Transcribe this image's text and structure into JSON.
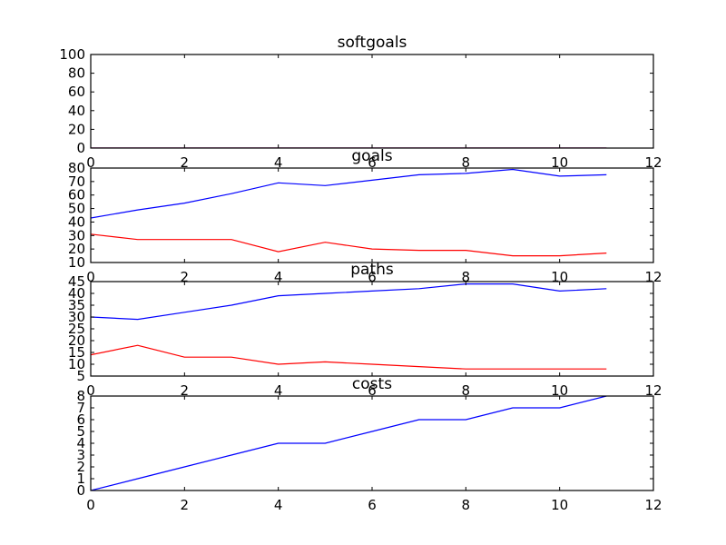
{
  "chart_data": [
    {
      "type": "line",
      "title": "softgoals",
      "xlim": [
        0,
        12
      ],
      "ylim": [
        0,
        100
      ],
      "xticks": [
        "0",
        "2",
        "4",
        "6",
        "8",
        "10",
        "12"
      ],
      "yticks": [
        "0",
        "20",
        "40",
        "60",
        "80",
        "100"
      ],
      "series": [
        {
          "color": "#0000ff",
          "x": [
            0,
            1,
            2,
            3,
            4,
            5,
            6,
            7,
            8,
            9,
            10,
            11
          ],
          "y": [
            0,
            0,
            0,
            0,
            0,
            0,
            0,
            0,
            0,
            0,
            0,
            0
          ]
        },
        {
          "color": "#ff0000",
          "x": [
            0,
            1,
            2,
            3,
            4,
            5,
            6,
            7,
            8,
            9,
            10,
            11
          ],
          "y": [
            0,
            0,
            0,
            0,
            0,
            0,
            0,
            0,
            0,
            0,
            0,
            0
          ]
        }
      ]
    },
    {
      "type": "line",
      "title": "goals",
      "xlim": [
        0,
        12
      ],
      "ylim": [
        10,
        80
      ],
      "xticks": [
        "0",
        "2",
        "4",
        "6",
        "8",
        "10",
        "12"
      ],
      "yticks": [
        "10",
        "20",
        "30",
        "40",
        "50",
        "60",
        "70",
        "80"
      ],
      "series": [
        {
          "color": "#0000ff",
          "x": [
            0,
            1,
            2,
            3,
            4,
            5,
            6,
            7,
            8,
            9,
            10,
            11
          ],
          "y": [
            43,
            49,
            54,
            61,
            69,
            67,
            71,
            75,
            76,
            79,
            74,
            75
          ]
        },
        {
          "color": "#ff0000",
          "x": [
            0,
            1,
            2,
            3,
            4,
            5,
            6,
            7,
            8,
            9,
            10,
            11
          ],
          "y": [
            31,
            27,
            27,
            27,
            18,
            25,
            20,
            19,
            19,
            15,
            15,
            17
          ]
        }
      ]
    },
    {
      "type": "line",
      "title": "paths",
      "xlim": [
        0,
        12
      ],
      "ylim": [
        5,
        45
      ],
      "xticks": [
        "0",
        "2",
        "4",
        "6",
        "8",
        "10",
        "12"
      ],
      "yticks": [
        "5",
        "10",
        "15",
        "20",
        "25",
        "30",
        "35",
        "40",
        "45"
      ],
      "series": [
        {
          "color": "#0000ff",
          "x": [
            0,
            1,
            2,
            3,
            4,
            5,
            6,
            7,
            8,
            9,
            10,
            11
          ],
          "y": [
            30,
            29,
            32,
            35,
            39,
            40,
            41,
            42,
            44,
            44,
            41,
            42
          ]
        },
        {
          "color": "#ff0000",
          "x": [
            0,
            1,
            2,
            3,
            4,
            5,
            6,
            7,
            8,
            9,
            10,
            11
          ],
          "y": [
            14,
            18,
            13,
            13,
            10,
            11,
            10,
            9,
            8,
            8,
            8,
            8
          ]
        }
      ]
    },
    {
      "type": "line",
      "title": "costs",
      "xlim": [
        0,
        12
      ],
      "ylim": [
        0,
        8
      ],
      "xticks": [
        "0",
        "2",
        "4",
        "6",
        "8",
        "10",
        "12"
      ],
      "yticks": [
        "0",
        "1",
        "2",
        "3",
        "4",
        "5",
        "6",
        "7",
        "8"
      ],
      "series": [
        {
          "color": "#0000ff",
          "x": [
            0,
            1,
            2,
            3,
            4,
            5,
            6,
            7,
            8,
            9,
            10,
            11
          ],
          "y": [
            0,
            1,
            2,
            3,
            4,
            4,
            5,
            6,
            6,
            7,
            7,
            8
          ]
        }
      ]
    }
  ]
}
